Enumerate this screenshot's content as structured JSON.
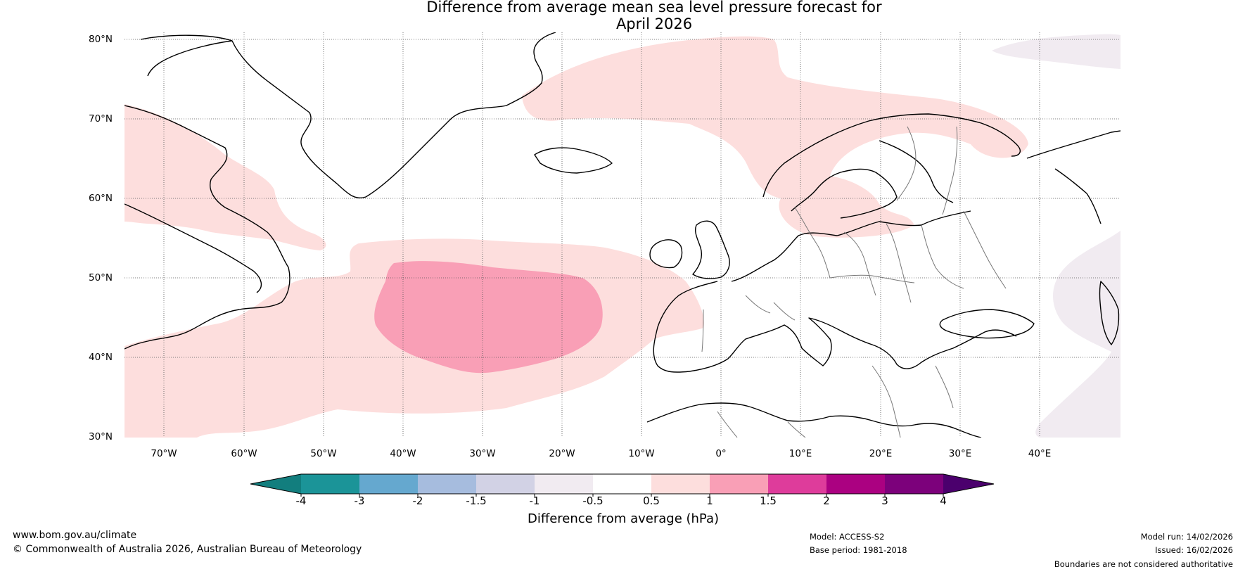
{
  "title": {
    "line1": "Difference from average mean sea level pressure forecast for",
    "line2": "April 2026"
  },
  "map": {
    "latitude_labels": [
      "80°N",
      "70°N",
      "60°N",
      "50°N",
      "40°N",
      "30°N"
    ],
    "longitude_labels": [
      "70°W",
      "60°W",
      "50°W",
      "40°W",
      "30°W",
      "20°W",
      "10°W",
      "0°",
      "10°E",
      "20°E",
      "30°E",
      "40°E"
    ],
    "lat_range": [
      30,
      81
    ],
    "lon_range": [
      -75,
      50
    ],
    "anomaly_regions": [
      {
        "category": "0.5 to 1",
        "label": "North Atlantic / Greenland Sea positive anomaly"
      },
      {
        "category": "0.5 to 1",
        "label": "Scandinavia positive anomaly"
      },
      {
        "category": "0.5 to 1",
        "label": "Labrador / Hudson Bay positive anomaly"
      },
      {
        "category": "1 to 1.5",
        "label": "Central North Atlantic positive anomaly"
      },
      {
        "category": "-1 to -0.5",
        "label": "Barents Sea negative anomaly"
      },
      {
        "category": "-1 to -0.5",
        "label": "Black Sea / Caspian negative anomaly"
      }
    ]
  },
  "colorbar": {
    "title": "Difference from average (hPa)",
    "tick_labels": [
      "-4",
      "-3",
      "-2",
      "-1.5",
      "-1",
      "-0.5",
      "0.5",
      "1",
      "1.5",
      "2",
      "3",
      "4"
    ],
    "colors": [
      "#127e7e",
      "#1b9498",
      "#65a8cf",
      "#a6bcde",
      "#d2d2e5",
      "#f1ebf1",
      "#ffffff",
      "#fddedd",
      "#f99fb6",
      "#de3c9b",
      "#ab0181",
      "#7c017b",
      "#4b006d"
    ],
    "under_color": "#127e7e",
    "over_color": "#4b006d"
  },
  "footer": {
    "website": "www.bom.gov.au/climate",
    "copyright": "© Commonwealth of Australia 2026, Australian Bureau of Meteorology",
    "model": "Model: ACCESS-S2",
    "base_period": "Base period: 1981-2018",
    "model_run": "Model run: 14/02/2026",
    "issued": "Issued: 16/02/2026",
    "disclaimer": "Boundaries are not considered authoritative"
  }
}
